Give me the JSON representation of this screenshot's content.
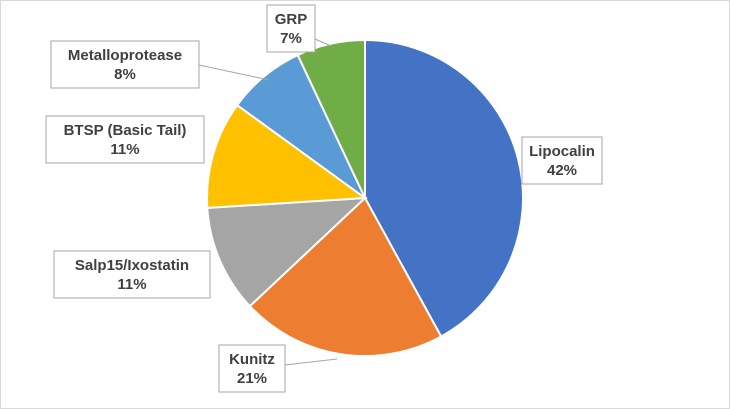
{
  "chart_data": {
    "type": "pie",
    "start_angle_deg": 0,
    "direction": "clockwise",
    "slices": [
      {
        "name": "Lipocalin",
        "value": 42,
        "label_value": "42%",
        "color": "#4472C4"
      },
      {
        "name": "Kunitz",
        "value": 21,
        "label_value": "21%",
        "color": "#ED7D31"
      },
      {
        "name": "Salp15/Ixostatin",
        "value": 11,
        "label_value": "11%",
        "color": "#A5A5A5"
      },
      {
        "name": "BTSP (Basic Tail)",
        "value": 11,
        "label_value": "11%",
        "color": "#FFC000"
      },
      {
        "name": "Metalloprotease",
        "value": 8,
        "label_value": "8%",
        "color": "#5B9BD5"
      },
      {
        "name": "GRP",
        "value": 7,
        "label_value": "7%",
        "color": "#70AD47"
      }
    ],
    "labels": "callouts with leader lines",
    "legend": "none"
  }
}
